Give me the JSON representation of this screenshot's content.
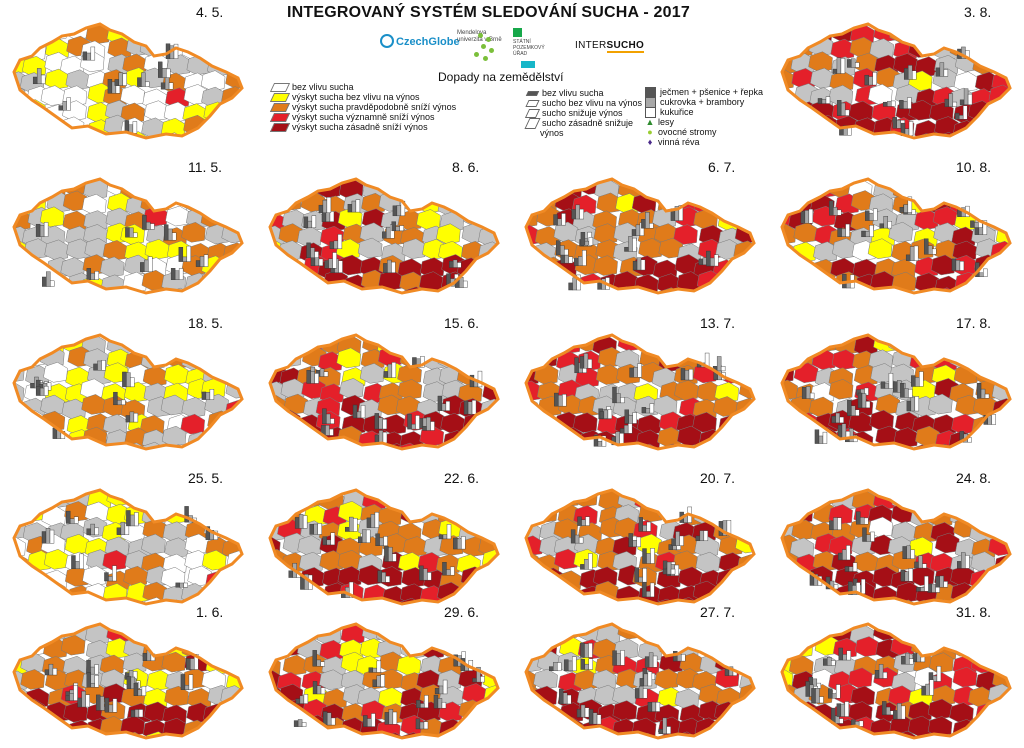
{
  "title": "INTEGROVANÝ SYSTÉM SLEDOVÁNÍ SUCHA - 2017",
  "logos": {
    "czechglobe": "CzechGlobe",
    "mendel": "Mendelova univerzita v Brně",
    "spu": "STÁTNÍ POZEMKOVÝ ÚŘAD",
    "intersucho_a": "INTER",
    "intersucho_b": "SUCHO"
  },
  "impact_title": "Dopady na zemědělství",
  "legend_drought": [
    {
      "label": "bez vlivu sucha",
      "color": "#ffffff"
    },
    {
      "label": "výskyt sucha bez vlivu na výnos",
      "color": "#ffff00"
    },
    {
      "label": "výskyt sucha pravděpodobně sníží výnos",
      "color": "#e07b1a"
    },
    {
      "label": "výskyt sucha významně sníží výnos",
      "color": "#e4202a"
    },
    {
      "label": "výskyt sucha zásadně sníží výnos",
      "color": "#a50f16"
    }
  ],
  "legend_bars": [
    {
      "label": "bez vlivu sucha"
    },
    {
      "label": "sucho bez vlivu na výnos"
    },
    {
      "label": "sucho snižuje výnos"
    },
    {
      "label": "sucho zásadně snižuje"
    },
    {
      "label": "výnos"
    }
  ],
  "legend_crops": [
    {
      "label": "ječmen + pšenice + řepka",
      "color": "#555555"
    },
    {
      "label": "cukrovka + brambory",
      "color": "#a8a8a8"
    },
    {
      "label": "kukuřice",
      "color": "#ffffff"
    }
  ],
  "legend_symbols": [
    {
      "label": "lesy",
      "symbol": "▲",
      "color": "#2e8b2e"
    },
    {
      "label": "ovocné stromy",
      "symbol": "●",
      "color": "#9acd32"
    },
    {
      "label": "vinná réva",
      "symbol": "♦",
      "color": "#4b2a8a"
    }
  ],
  "colors": {
    "none": "#ffffff",
    "no_impact": "#ffff00",
    "probable": "#e07b1a",
    "significant": "#e4202a",
    "severe": "#a50f16",
    "grey": "#c4c4c4",
    "border": "#f08a24"
  },
  "maps": [
    {
      "date": "4. 5.",
      "mix": "early"
    },
    {
      "date": "11. 5.",
      "mix": "early2"
    },
    {
      "date": "18. 5.",
      "mix": "early2"
    },
    {
      "date": "25. 5.",
      "mix": "early3"
    },
    {
      "date": "1. 6.",
      "mix": "mid1"
    },
    {
      "date": "8. 6.",
      "mix": "mid2"
    },
    {
      "date": "15. 6.",
      "mix": "mid3"
    },
    {
      "date": "22. 6.",
      "mix": "mid3"
    },
    {
      "date": "29. 6.",
      "mix": "mid3"
    },
    {
      "date": "6. 7.",
      "mix": "late"
    },
    {
      "date": "13. 7.",
      "mix": "late"
    },
    {
      "date": "20. 7.",
      "mix": "late"
    },
    {
      "date": "27. 7.",
      "mix": "late"
    },
    {
      "date": "3. 8.",
      "mix": "aug"
    },
    {
      "date": "10. 8.",
      "mix": "aug"
    },
    {
      "date": "17. 8.",
      "mix": "aug"
    },
    {
      "date": "24. 8.",
      "mix": "aug"
    },
    {
      "date": "31. 8.",
      "mix": "aug"
    }
  ]
}
